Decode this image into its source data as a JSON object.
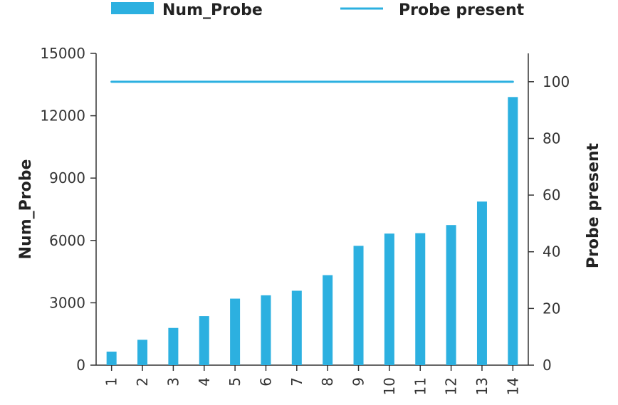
{
  "chart_data": {
    "type": "bar",
    "categories": [
      "1",
      "2",
      "3",
      "4",
      "5",
      "6",
      "7",
      "8",
      "9",
      "10",
      "11",
      "12",
      "13",
      "14"
    ],
    "series": [
      {
        "name": "Num_Probe",
        "type": "bar",
        "axis": "left",
        "color": "#2CB0E0",
        "values": [
          650,
          1220,
          1790,
          2360,
          3200,
          3360,
          3580,
          4330,
          5740,
          6330,
          6350,
          6740,
          7870,
          12900
        ]
      },
      {
        "name": "Probe present",
        "type": "line",
        "axis": "right",
        "color": "#2CB0E0",
        "values": [
          100,
          100,
          100,
          100,
          100,
          100,
          100,
          100,
          100,
          100,
          100,
          100,
          100,
          100
        ]
      }
    ],
    "ylabel": "Num_Probe",
    "y2label": "Probe present",
    "ylim": [
      0,
      15000
    ],
    "y2lim": [
      0,
      110
    ],
    "yticks": [
      "0",
      "3000",
      "6000",
      "9000",
      "12000",
      "15000"
    ],
    "y2ticks": [
      "0",
      "20",
      "40",
      "60",
      "80",
      "100"
    ],
    "legend_position": "top",
    "grid": false
  }
}
